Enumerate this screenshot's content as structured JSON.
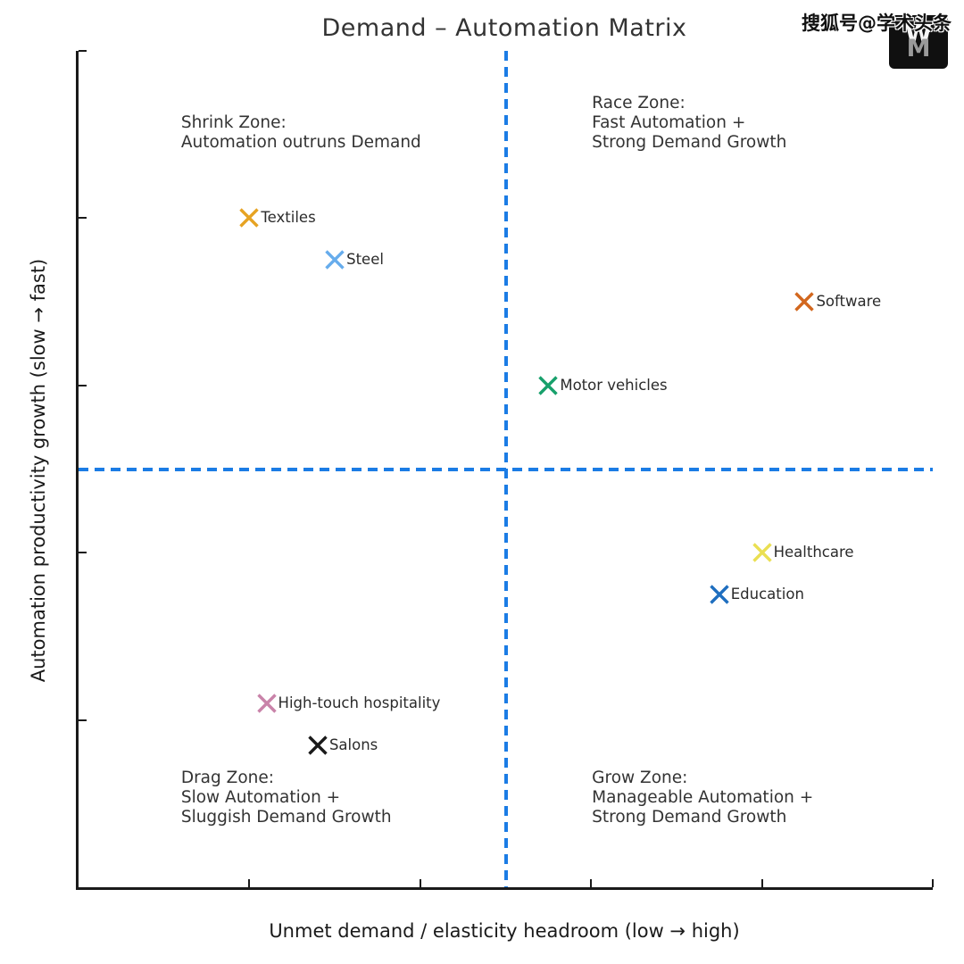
{
  "watermark": {
    "text": "搜狐号@学术头条",
    "logo_top": "W",
    "logo_bottom": "M"
  },
  "chart_data": {
    "type": "scatter",
    "title": "Demand – Automation Matrix",
    "xlabel": "Unmet demand / elasticity headroom (low → high)",
    "ylabel": "Automation productivity growth (slow → fast)",
    "xlim": [
      0,
      1
    ],
    "ylim": [
      0,
      1
    ],
    "x_ticks": [
      0.2,
      0.4,
      0.6,
      0.8,
      1.0
    ],
    "y_ticks": [
      0.2,
      0.4,
      0.6,
      0.8,
      1.0
    ],
    "tick_labels_shown": false,
    "grid": false,
    "marker": "x",
    "crosshair": {
      "x": 0.5,
      "y": 0.5,
      "color": "#1b7ce5",
      "style": "dashed"
    },
    "points": [
      {
        "label": "Textiles",
        "x": 0.2,
        "y": 0.8,
        "color": "#e6a323"
      },
      {
        "label": "Steel",
        "x": 0.3,
        "y": 0.75,
        "color": "#66acec"
      },
      {
        "label": "Software",
        "x": 0.85,
        "y": 0.7,
        "color": "#d2671e"
      },
      {
        "label": "Motor vehicles",
        "x": 0.55,
        "y": 0.6,
        "color": "#17a06b"
      },
      {
        "label": "Healthcare",
        "x": 0.8,
        "y": 0.4,
        "color": "#eadf52"
      },
      {
        "label": "Education",
        "x": 0.75,
        "y": 0.35,
        "color": "#1e6ebf"
      },
      {
        "label": "High-touch hospitality",
        "x": 0.22,
        "y": 0.22,
        "color": "#c983a9"
      },
      {
        "label": "Salons",
        "x": 0.28,
        "y": 0.17,
        "color": "#1a1a1a"
      }
    ],
    "zones": [
      {
        "name": "shrink",
        "lines": [
          "Shrink Zone:",
          "Automation outruns Demand"
        ],
        "fx": 0.12,
        "fy": 0.0745
      },
      {
        "name": "race",
        "lines": [
          "Race Zone:",
          "Fast Automation +",
          "Strong Demand Growth"
        ],
        "fx": 0.601,
        "fy": 0.051
      },
      {
        "name": "drag",
        "lines": [
          "Drag Zone:",
          "Slow Automation +",
          "Sluggish Demand Growth"
        ],
        "fx": 0.12,
        "fy": 0.858
      },
      {
        "name": "grow",
        "lines": [
          "Grow Zone:",
          "Manageable Automation +",
          "Strong Demand Growth"
        ],
        "fx": 0.601,
        "fy": 0.858
      }
    ]
  }
}
